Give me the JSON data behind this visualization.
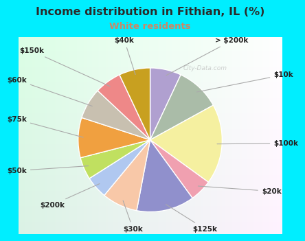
{
  "title": "Income distribution in Fithian, IL (%)",
  "subtitle": "White residents",
  "title_color": "#2a2a2a",
  "subtitle_color": "#cc8866",
  "background_cyan": "#00EEFF",
  "background_chart": "#e0f4ee",
  "labels": [
    "> $200k",
    "$10k",
    "$100k",
    "$20k",
    "$125k",
    "$30k",
    "$200k",
    "$50k",
    "$75k",
    "$60k",
    "$150k",
    "$40k"
  ],
  "values": [
    7,
    10,
    18,
    5,
    13,
    8,
    5,
    5,
    9,
    7,
    6,
    7
  ],
  "colors": [
    "#b0a0d0",
    "#aabca8",
    "#f5f0a0",
    "#f0a0b0",
    "#9090cc",
    "#f8c8a8",
    "#b0c8f0",
    "#c0e060",
    "#f0a040",
    "#c8c0b0",
    "#ee8888",
    "#c8a020"
  ],
  "title_fontsize": 11.5,
  "subtitle_fontsize": 9.5,
  "label_fontsize": 7.5
}
